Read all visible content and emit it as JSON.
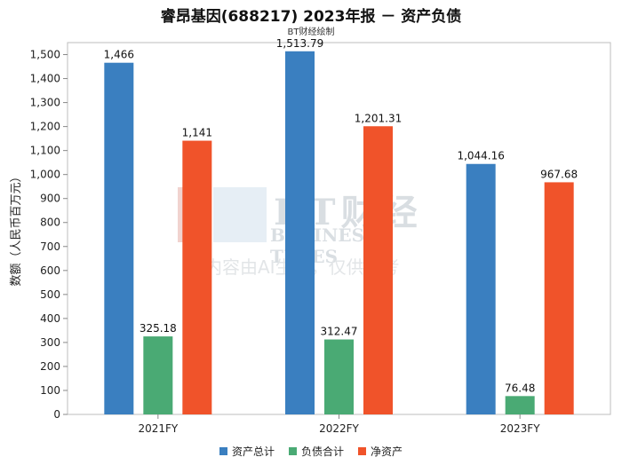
{
  "title": "睿昂基因(688217) 2023年报 － 资产负债",
  "subtitle": "BT财经绘制",
  "watermark": {
    "brand": "BT财经",
    "english": "BUSINESS TIMES",
    "notice": "内容由AI生成，仅供参考"
  },
  "chart_data": {
    "type": "bar",
    "categories": [
      "2021FY",
      "2022FY",
      "2023FY"
    ],
    "series": [
      {
        "name": "资产总计",
        "color": "#3a7fc0",
        "values": [
          1466,
          1513.79,
          1044.16
        ],
        "labels": [
          "1,466",
          "1,513.79",
          "1,044.16"
        ]
      },
      {
        "name": "负债合计",
        "color": "#4aaa74",
        "values": [
          325.18,
          312.47,
          76.48
        ],
        "labels": [
          "325.18",
          "312.47",
          "76.48"
        ]
      },
      {
        "name": "净资产",
        "color": "#f0532a",
        "values": [
          1141,
          1201.31,
          967.68
        ],
        "labels": [
          "1,141",
          "1,201.31",
          "967.68"
        ]
      }
    ],
    "ylabel": "数额（人民币百万元）",
    "ylim": [
      0,
      1550
    ],
    "yticks": [
      0,
      100,
      200,
      300,
      400,
      500,
      600,
      700,
      800,
      900,
      1000,
      1100,
      1200,
      1300,
      1400,
      1500
    ],
    "ytick_labels": [
      "0",
      "100",
      "200",
      "300",
      "400",
      "500",
      "600",
      "700",
      "800",
      "900",
      "1,000",
      "1,100",
      "1,200",
      "1,300",
      "1,400",
      "1,500"
    ],
    "grid": false,
    "legend_position": "bottom"
  }
}
